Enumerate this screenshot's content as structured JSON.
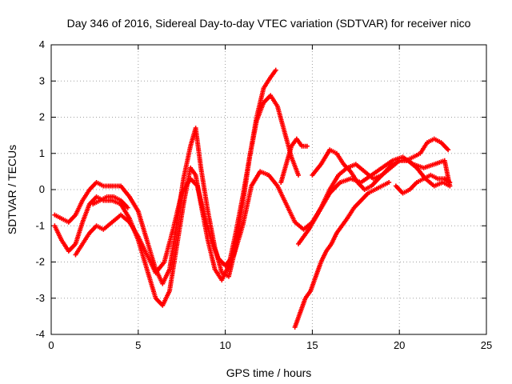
{
  "chart_data": {
    "type": "scatter",
    "title": "Day 346 of 2016, Sidereal Day-to-day VTEC variation (SDTVAR) for receiver nico",
    "xlabel": "GPS time / hours",
    "ylabel": "SDTVAR / TECUs",
    "xlim": [
      0,
      25
    ],
    "ylim": [
      -4,
      4
    ],
    "xticks": [
      0,
      5,
      10,
      15,
      20,
      25
    ],
    "yticks": [
      -4,
      -3,
      -2,
      -1,
      0,
      1,
      2,
      3,
      4
    ],
    "grid": true,
    "marker": "+",
    "color": "#ff0000",
    "series": [
      {
        "x": [
          0.2,
          0.6,
          1.0,
          1.4,
          1.8,
          2.2,
          2.6,
          3.0,
          3.5,
          4.0,
          4.5,
          5.0,
          5.5,
          6.0,
          6.4,
          6.8,
          7.2,
          7.6,
          8.0,
          8.3,
          8.6,
          9.0,
          9.4,
          9.8,
          10.2,
          10.6,
          11.0,
          11.4,
          11.8,
          12.2,
          12.6,
          13.0,
          13.4,
          13.8,
          14.2
        ],
        "y": [
          -0.7,
          -0.8,
          -0.9,
          -0.7,
          -0.3,
          0.0,
          0.2,
          0.1,
          0.1,
          0.1,
          -0.2,
          -0.6,
          -1.4,
          -2.2,
          -2.6,
          -2.2,
          -1.0,
          0.3,
          1.2,
          1.7,
          0.6,
          -0.6,
          -1.6,
          -2.3,
          -2.4,
          -1.6,
          -0.4,
          0.9,
          1.9,
          2.4,
          2.6,
          2.3,
          1.6,
          0.9,
          0.4
        ]
      },
      {
        "x": [
          0.2,
          0.6,
          1.0,
          1.4,
          1.8,
          2.2,
          2.6,
          3.0,
          3.5,
          4.0,
          4.5,
          5.0,
          5.5,
          6.0,
          6.4,
          6.8,
          7.2,
          7.6,
          8.0,
          8.3,
          8.6,
          9.0,
          9.4,
          9.8,
          10.2,
          10.6,
          11.0,
          11.4,
          11.8,
          12.2,
          12.6,
          12.9
        ],
        "y": [
          -1.0,
          -1.4,
          -1.7,
          -1.5,
          -0.9,
          -0.4,
          -0.2,
          -0.3,
          -0.3,
          -0.4,
          -0.8,
          -1.4,
          -2.2,
          -3.0,
          -3.2,
          -2.8,
          -1.6,
          -0.4,
          0.6,
          0.4,
          -0.4,
          -1.4,
          -2.2,
          -2.5,
          -2.1,
          -1.2,
          -0.2,
          0.9,
          2.0,
          2.8,
          3.1,
          3.3
        ]
      },
      {
        "x": [
          1.4,
          1.8,
          2.2,
          2.6,
          3.0,
          3.5,
          4.0,
          4.5,
          5.0,
          5.5,
          6.0,
          6.5,
          7.0,
          7.5,
          8.0,
          8.4,
          8.8,
          9.2,
          9.6,
          10.0,
          10.5,
          11.0,
          11.5,
          12.0,
          12.5,
          13.0,
          13.5,
          14.0,
          14.5,
          15.0,
          15.5,
          16.0,
          16.5,
          17.0,
          17.5,
          18.0,
          18.5,
          19.0,
          19.5,
          20.0,
          20.5,
          21.0,
          21.5,
          22.0,
          22.5,
          22.9
        ],
        "y": [
          -1.8,
          -1.5,
          -1.2,
          -1.0,
          -1.1,
          -0.9,
          -0.7,
          -0.9,
          -1.3,
          -1.8,
          -2.3,
          -2.0,
          -1.1,
          -0.1,
          0.3,
          0.1,
          -0.7,
          -1.4,
          -1.9,
          -2.1,
          -1.8,
          -1.0,
          0.1,
          0.5,
          0.4,
          0.1,
          -0.4,
          -0.9,
          -1.1,
          -0.9,
          -0.5,
          0.0,
          0.4,
          0.6,
          0.7,
          0.5,
          0.3,
          0.4,
          0.6,
          0.8,
          0.8,
          0.6,
          0.3,
          0.1,
          0.2,
          0.1
        ]
      },
      {
        "x": [
          2.4,
          2.8,
          3.2,
          3.6,
          4.0,
          4.4
        ],
        "y": [
          -0.4,
          -0.3,
          -0.2,
          -0.2,
          -0.3,
          -0.5
        ]
      },
      {
        "x": [
          13.2,
          13.5,
          13.8,
          14.1,
          14.4,
          14.7
        ],
        "y": [
          0.2,
          0.7,
          1.2,
          1.4,
          1.2,
          1.2
        ]
      },
      {
        "x": [
          14.2,
          14.8,
          15.4,
          16.0,
          16.6,
          17.2,
          17.8,
          18.4,
          19.0,
          19.6,
          20.2,
          20.8,
          21.4,
          22.0,
          22.6,
          22.9
        ],
        "y": [
          -1.5,
          -1.1,
          -0.6,
          -0.1,
          0.2,
          0.3,
          0.2,
          0.4,
          0.6,
          0.8,
          0.9,
          0.7,
          0.6,
          0.7,
          0.8,
          0.1
        ]
      },
      {
        "x": [
          14.0,
          14.3,
          14.6,
          14.9,
          15.2,
          15.5,
          15.8,
          16.1,
          16.4,
          16.7,
          17.0,
          17.4,
          17.8,
          18.2,
          18.6,
          19.0,
          19.4
        ],
        "y": [
          -3.8,
          -3.4,
          -3.0,
          -2.8,
          -2.4,
          -2.0,
          -1.7,
          -1.5,
          -1.2,
          -1.0,
          -0.8,
          -0.5,
          -0.3,
          -0.1,
          0.0,
          0.1,
          0.2
        ]
      },
      {
        "x": [
          15.0,
          15.5,
          16.0,
          16.4,
          16.8,
          17.2,
          17.6,
          18.0,
          18.4,
          18.8,
          19.2,
          19.6,
          20.0,
          20.4,
          20.8,
          21.2,
          21.6,
          22.0,
          22.4,
          22.8
        ],
        "y": [
          0.4,
          0.7,
          1.1,
          1.0,
          0.7,
          0.5,
          0.2,
          0.0,
          0.1,
          0.3,
          0.5,
          0.7,
          0.8,
          0.8,
          0.9,
          1.0,
          1.3,
          1.4,
          1.3,
          1.1
        ]
      },
      {
        "x": [
          19.8,
          20.2,
          20.6,
          21.0,
          21.4,
          21.8,
          22.2,
          22.6,
          22.9
        ],
        "y": [
          0.1,
          -0.1,
          0.0,
          0.2,
          0.3,
          0.4,
          0.3,
          0.3,
          0.2
        ]
      }
    ]
  }
}
